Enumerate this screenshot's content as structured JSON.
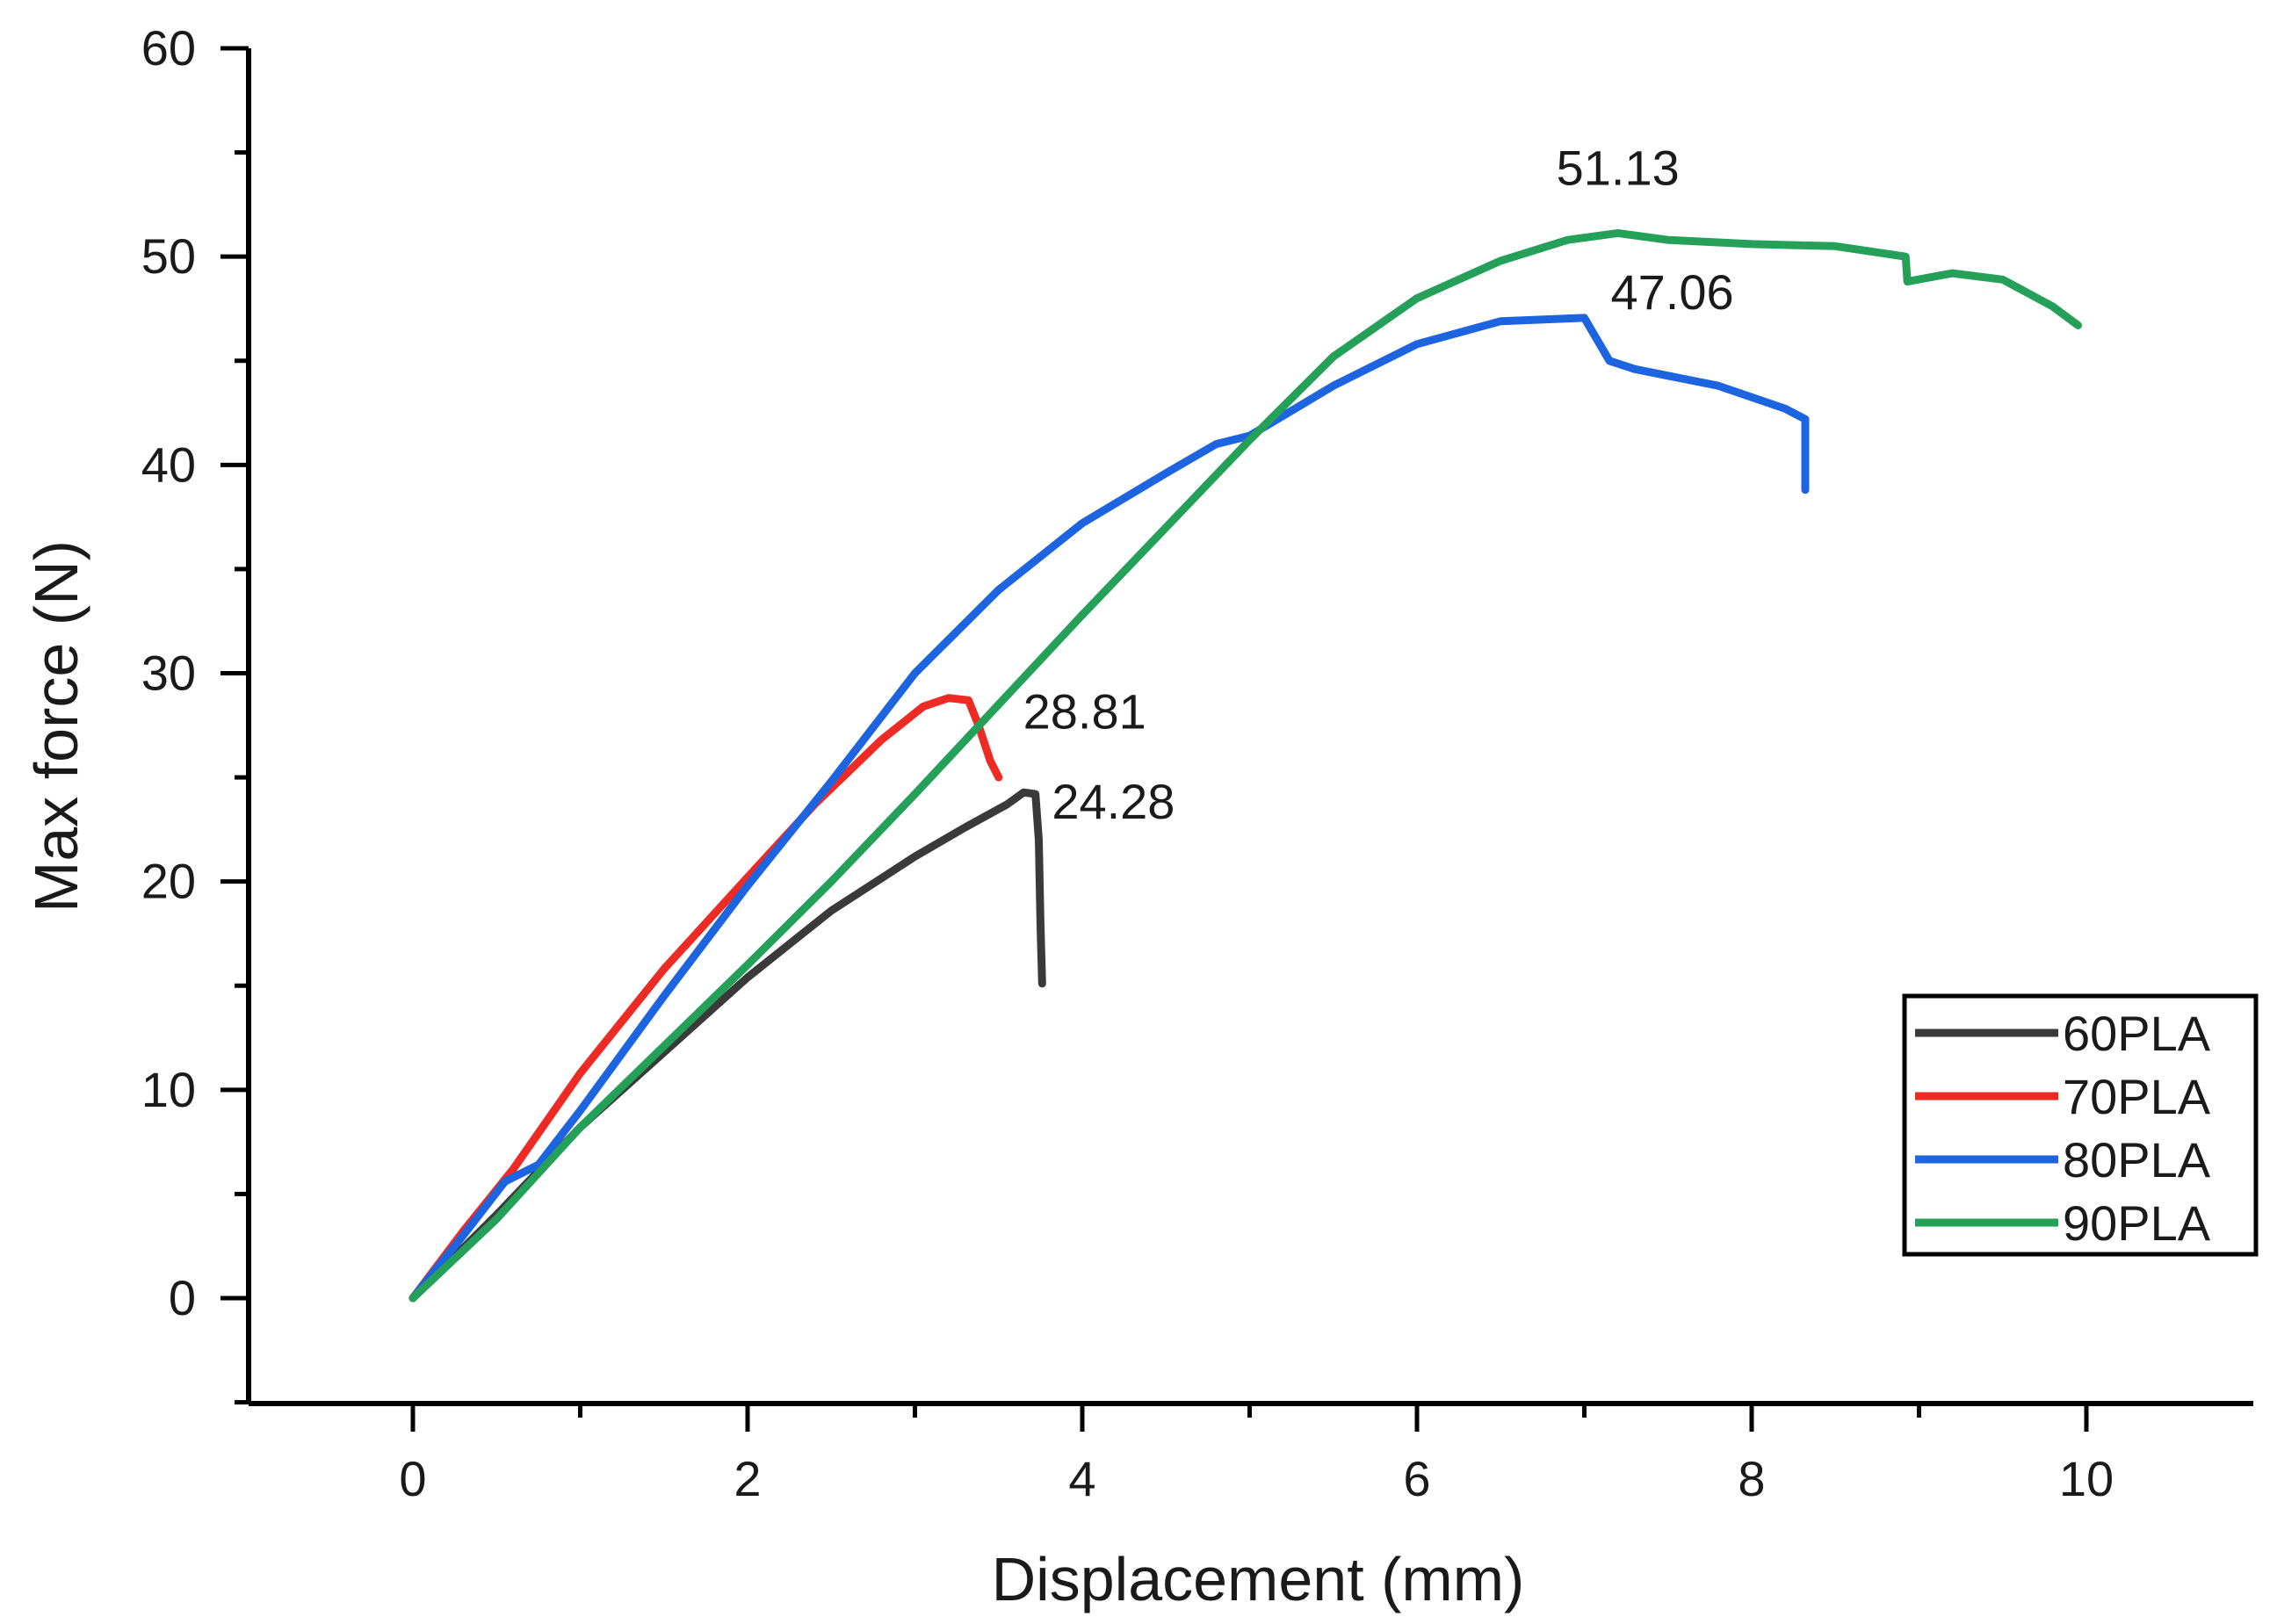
{
  "chart_data": {
    "type": "line",
    "title": "",
    "xlabel": "Displacement (mm)",
    "ylabel": "Max force (N)",
    "xlim": [
      -1,
      11.2
    ],
    "ylim": [
      -5,
      60
    ],
    "x_ticks": [
      0,
      2,
      4,
      6,
      8,
      10
    ],
    "y_ticks": [
      0,
      10,
      20,
      30,
      40,
      50,
      60
    ],
    "grid": false,
    "legend_position": "bottom-right",
    "series": [
      {
        "name": "60PLA",
        "color": "#3a3a3a",
        "points": [
          [
            0,
            0
          ],
          [
            0.5,
            4
          ],
          [
            1,
            8.2
          ],
          [
            1.5,
            11.8
          ],
          [
            2,
            15.4
          ],
          [
            2.5,
            18.6
          ],
          [
            3,
            21.2
          ],
          [
            3.3,
            22.6
          ],
          [
            3.55,
            23.7
          ],
          [
            3.65,
            24.28
          ],
          [
            3.72,
            24.2
          ],
          [
            3.74,
            22
          ],
          [
            3.75,
            18
          ],
          [
            3.76,
            15.1
          ]
        ]
      },
      {
        "name": "70PLA",
        "color": "#ee2a24",
        "points": [
          [
            0,
            0
          ],
          [
            0.3,
            3.2
          ],
          [
            0.6,
            6.2
          ],
          [
            1,
            10.8
          ],
          [
            1.5,
            15.8
          ],
          [
            2,
            20.2
          ],
          [
            2.4,
            23.7
          ],
          [
            2.8,
            26.8
          ],
          [
            3.05,
            28.4
          ],
          [
            3.2,
            28.81
          ],
          [
            3.32,
            28.7
          ],
          [
            3.38,
            27.5
          ],
          [
            3.45,
            25.8
          ],
          [
            3.5,
            25
          ]
        ]
      },
      {
        "name": "80PLA",
        "color": "#1c64e0",
        "points": [
          [
            0,
            0
          ],
          [
            0.3,
            3
          ],
          [
            0.55,
            5.6
          ],
          [
            0.75,
            6.4
          ],
          [
            1,
            9
          ],
          [
            1.5,
            14.5
          ],
          [
            2,
            19.8
          ],
          [
            2.5,
            24.8
          ],
          [
            3,
            30
          ],
          [
            3.5,
            34
          ],
          [
            4,
            37.2
          ],
          [
            4.5,
            39.6
          ],
          [
            4.8,
            41
          ],
          [
            5,
            41.4
          ],
          [
            5.5,
            43.8
          ],
          [
            6,
            45.8
          ],
          [
            6.5,
            46.9
          ],
          [
            7,
            47.06
          ],
          [
            7.15,
            45
          ],
          [
            7.3,
            44.6
          ],
          [
            7.8,
            43.8
          ],
          [
            8.2,
            42.7
          ],
          [
            8.32,
            42.2
          ],
          [
            8.32,
            38.8
          ]
        ]
      },
      {
        "name": "90PLA",
        "color": "#24a059",
        "points": [
          [
            0,
            0
          ],
          [
            0.5,
            3.8
          ],
          [
            1,
            8.2
          ],
          [
            1.5,
            12.1
          ],
          [
            2,
            16
          ],
          [
            2.5,
            20
          ],
          [
            3,
            24.2
          ],
          [
            3.5,
            28.5
          ],
          [
            4,
            32.8
          ],
          [
            4.5,
            37
          ],
          [
            5,
            41.2
          ],
          [
            5.5,
            45.2
          ],
          [
            6,
            48
          ],
          [
            6.5,
            49.8
          ],
          [
            6.9,
            50.8
          ],
          [
            7.2,
            51.13
          ],
          [
            7.5,
            50.8
          ],
          [
            8,
            50.6
          ],
          [
            8.5,
            50.5
          ],
          [
            8.92,
            50
          ],
          [
            8.93,
            48.8
          ],
          [
            9.2,
            49.2
          ],
          [
            9.5,
            48.9
          ],
          [
            9.8,
            47.6
          ],
          [
            9.95,
            46.7
          ]
        ]
      }
    ],
    "annotations": [
      {
        "text": "51.13",
        "x": 7.2,
        "y": 51.13
      },
      {
        "text": "47.06",
        "x": 7.0,
        "y": 47.06
      },
      {
        "text": "28.81",
        "x": 3.2,
        "y": 28.81
      },
      {
        "text": "24.28",
        "x": 3.65,
        "y": 24.28
      }
    ]
  }
}
